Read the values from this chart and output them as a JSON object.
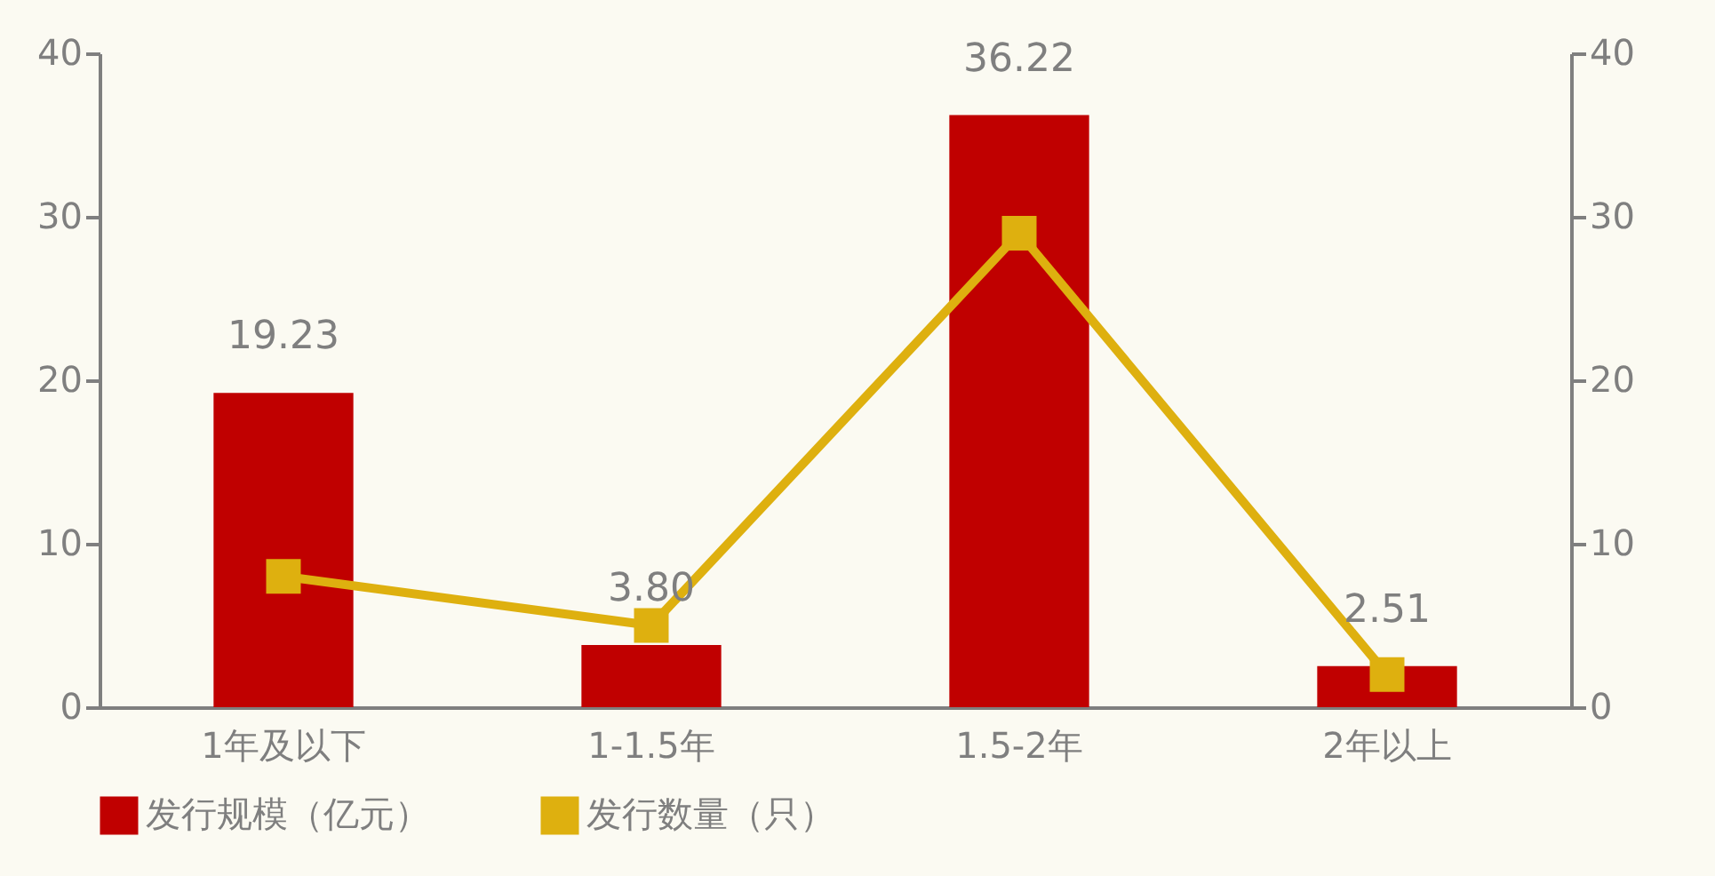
{
  "chart_data": {
    "type": "bar",
    "categories": [
      "1年及以下",
      "1-1.5年",
      "1.5-2年",
      "2年以上"
    ],
    "series": [
      {
        "name": "发行规模（亿元）",
        "color": "#c00000",
        "values": [
          19.23,
          3.8,
          36.22,
          2.51
        ],
        "value_labels": [
          "19.23",
          "3.80",
          "36.22",
          "2.51"
        ]
      },
      {
        "name": "发行数量（只）",
        "type": "line",
        "axis": "y2",
        "color": "#deb00f",
        "marker": "square",
        "values": [
          8,
          5,
          29,
          2
        ]
      }
    ],
    "ylim": [
      0,
      40
    ],
    "yticks": [
      0,
      10,
      20,
      30,
      40
    ],
    "y2lim": [
      0,
      40
    ],
    "y2ticks": [
      0,
      10,
      20,
      30,
      40
    ],
    "grid": false,
    "legend": "bottom"
  }
}
